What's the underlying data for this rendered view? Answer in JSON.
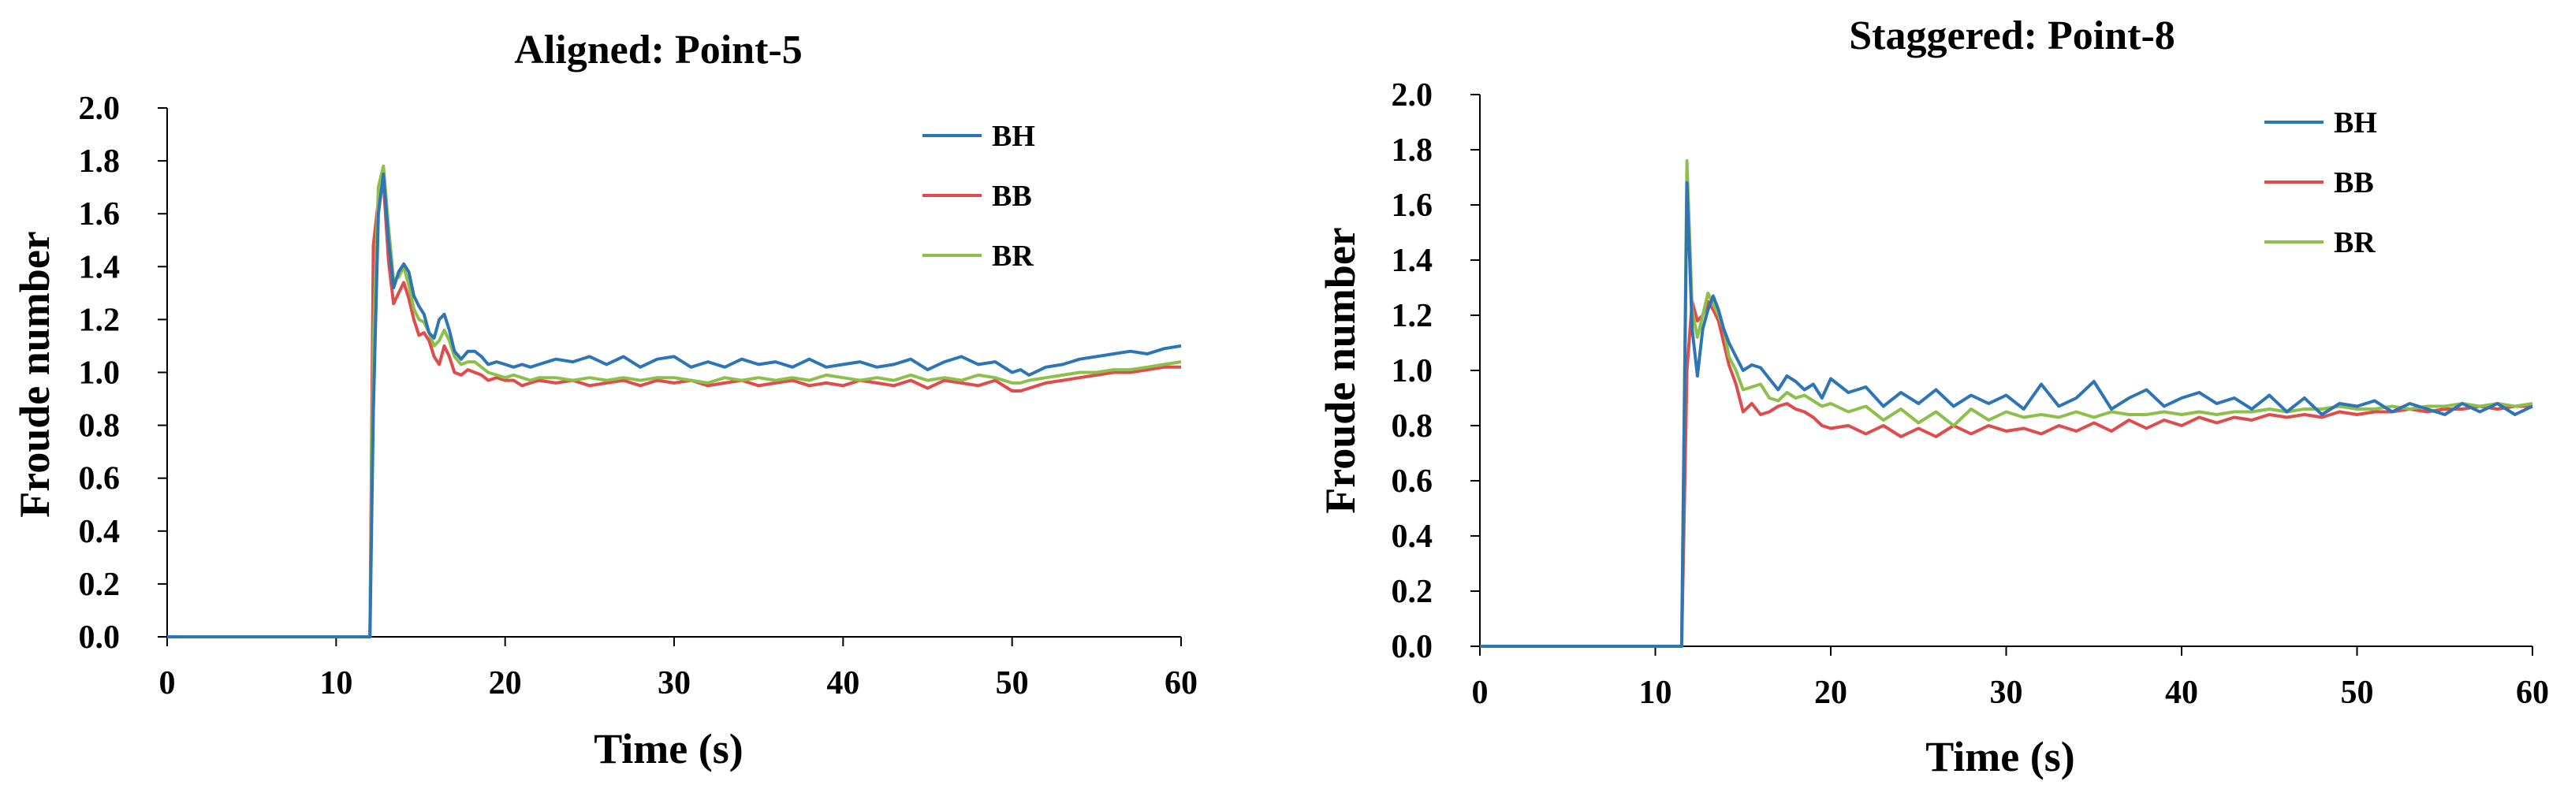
{
  "chart_data": [
    {
      "type": "line",
      "title": "Aligned: Point-5",
      "xlabel": "Time (s)",
      "ylabel": "Froude number",
      "xlim": [
        0,
        60
      ],
      "ylim": [
        0,
        2.0
      ],
      "x_ticks": [
        "0",
        "10",
        "20",
        "30",
        "40",
        "50",
        "60"
      ],
      "y_ticks": [
        "0.0",
        "0.2",
        "0.4",
        "0.6",
        "0.8",
        "1.0",
        "1.2",
        "1.4",
        "1.6",
        "1.8",
        "2.0"
      ],
      "grid": false,
      "legend_position": "top-right",
      "series": [
        {
          "name": "BH",
          "color": "#2e75b6",
          "x": [
            0,
            12,
            12.2,
            12.5,
            12.8,
            13.1,
            13.4,
            13.7,
            14.0,
            14.3,
            14.6,
            14.9,
            15.2,
            15.5,
            15.8,
            16.1,
            16.4,
            16.7,
            17.0,
            17.4,
            17.8,
            18.2,
            18.6,
            19.0,
            19.5,
            20.0,
            20.5,
            21,
            21.5,
            22,
            23,
            24,
            25,
            26,
            27,
            28,
            29,
            30,
            31,
            32,
            33,
            34,
            35,
            36,
            37,
            38,
            39,
            40,
            41,
            42,
            43,
            44,
            45,
            46,
            47,
            48,
            49,
            50,
            50.5,
            51,
            52,
            53,
            54,
            55,
            56,
            57,
            58,
            59,
            60
          ],
          "values": [
            0,
            0,
            0.85,
            1.6,
            1.75,
            1.5,
            1.32,
            1.38,
            1.41,
            1.38,
            1.29,
            1.25,
            1.22,
            1.15,
            1.13,
            1.2,
            1.22,
            1.16,
            1.08,
            1.05,
            1.08,
            1.08,
            1.06,
            1.03,
            1.04,
            1.03,
            1.02,
            1.03,
            1.02,
            1.03,
            1.05,
            1.04,
            1.06,
            1.03,
            1.06,
            1.02,
            1.05,
            1.06,
            1.02,
            1.04,
            1.02,
            1.05,
            1.03,
            1.04,
            1.02,
            1.05,
            1.02,
            1.03,
            1.04,
            1.02,
            1.03,
            1.05,
            1.01,
            1.04,
            1.06,
            1.03,
            1.04,
            1.0,
            1.01,
            0.99,
            1.02,
            1.03,
            1.05,
            1.06,
            1.07,
            1.08,
            1.07,
            1.09,
            1.1
          ]
        },
        {
          "name": "BB",
          "color": "#e04b4b",
          "x": [
            0,
            12,
            12.2,
            12.5,
            12.8,
            13.1,
            13.4,
            13.7,
            14.0,
            14.3,
            14.6,
            14.9,
            15.2,
            15.5,
            15.8,
            16.1,
            16.4,
            16.7,
            17.0,
            17.4,
            17.8,
            18.2,
            18.6,
            19.0,
            19.5,
            20.0,
            20.5,
            21,
            21.5,
            22,
            23,
            24,
            25,
            26,
            27,
            28,
            29,
            30,
            31,
            32,
            33,
            34,
            35,
            36,
            37,
            38,
            39,
            40,
            41,
            42,
            43,
            44,
            45,
            46,
            47,
            48,
            49,
            50,
            50.5,
            51,
            52,
            53,
            54,
            55,
            56,
            57,
            58,
            59,
            60
          ],
          "values": [
            0,
            0,
            1.48,
            1.65,
            1.72,
            1.42,
            1.26,
            1.3,
            1.34,
            1.28,
            1.2,
            1.14,
            1.15,
            1.12,
            1.06,
            1.03,
            1.1,
            1.06,
            1.0,
            0.99,
            1.01,
            1.0,
            0.99,
            0.97,
            0.98,
            0.97,
            0.97,
            0.95,
            0.96,
            0.97,
            0.96,
            0.97,
            0.95,
            0.96,
            0.97,
            0.95,
            0.97,
            0.96,
            0.97,
            0.95,
            0.96,
            0.97,
            0.95,
            0.96,
            0.97,
            0.95,
            0.96,
            0.95,
            0.97,
            0.96,
            0.95,
            0.97,
            0.94,
            0.97,
            0.96,
            0.95,
            0.97,
            0.93,
            0.93,
            0.94,
            0.96,
            0.97,
            0.98,
            0.99,
            1.0,
            1.0,
            1.01,
            1.02,
            1.02
          ]
        },
        {
          "name": "BR",
          "color": "#8cc04a",
          "x": [
            0,
            12,
            12.2,
            12.5,
            12.8,
            13.1,
            13.4,
            13.7,
            14.0,
            14.3,
            14.6,
            14.9,
            15.2,
            15.5,
            15.8,
            16.1,
            16.4,
            16.7,
            17.0,
            17.4,
            17.8,
            18.2,
            18.6,
            19.0,
            19.5,
            20.0,
            20.5,
            21,
            21.5,
            22,
            23,
            24,
            25,
            26,
            27,
            28,
            29,
            30,
            31,
            32,
            33,
            34,
            35,
            36,
            37,
            38,
            39,
            40,
            41,
            42,
            43,
            44,
            45,
            46,
            47,
            48,
            49,
            50,
            50.5,
            51,
            52,
            53,
            54,
            55,
            56,
            57,
            58,
            59,
            60
          ],
          "values": [
            0,
            0,
            1.1,
            1.7,
            1.78,
            1.55,
            1.35,
            1.36,
            1.4,
            1.33,
            1.24,
            1.2,
            1.19,
            1.15,
            1.1,
            1.12,
            1.16,
            1.12,
            1.06,
            1.03,
            1.04,
            1.04,
            1.02,
            1.0,
            0.99,
            0.98,
            0.99,
            0.98,
            0.97,
            0.98,
            0.98,
            0.97,
            0.98,
            0.97,
            0.98,
            0.97,
            0.98,
            0.98,
            0.97,
            0.96,
            0.98,
            0.97,
            0.98,
            0.97,
            0.98,
            0.97,
            0.99,
            0.98,
            0.97,
            0.98,
            0.97,
            0.99,
            0.97,
            0.98,
            0.97,
            0.99,
            0.98,
            0.96,
            0.96,
            0.97,
            0.98,
            0.99,
            1.0,
            1.0,
            1.01,
            1.01,
            1.02,
            1.03,
            1.04
          ]
        }
      ]
    },
    {
      "type": "line",
      "title": "Staggered: Point-8",
      "xlabel": "Time (s)",
      "ylabel": "Froude number",
      "xlim": [
        0,
        60
      ],
      "ylim": [
        0,
        2.0
      ],
      "x_ticks": [
        "0",
        "10",
        "20",
        "30",
        "40",
        "50",
        "60"
      ],
      "y_ticks": [
        "0.0",
        "0.2",
        "0.4",
        "0.6",
        "0.8",
        "1.0",
        "1.2",
        "1.4",
        "1.6",
        "1.8",
        "2.0"
      ],
      "grid": false,
      "legend_position": "top-right",
      "series": [
        {
          "name": "BH",
          "color": "#2e75b6",
          "x": [
            0,
            11.5,
            11.8,
            12.1,
            12.4,
            12.7,
            13.0,
            13.3,
            13.6,
            13.9,
            14.2,
            14.6,
            15.0,
            15.5,
            16.0,
            16.5,
            17.0,
            17.5,
            18.0,
            18.5,
            19,
            19.5,
            20,
            21,
            22,
            23,
            24,
            25,
            26,
            27,
            28,
            29,
            30,
            31,
            32,
            33,
            34,
            35,
            36,
            37,
            38,
            39,
            40,
            41,
            42,
            43,
            44,
            45,
            46,
            47,
            48,
            49,
            50,
            51,
            52,
            53,
            54,
            55,
            56,
            57,
            58,
            59,
            60
          ],
          "values": [
            0,
            0,
            1.68,
            1.15,
            0.98,
            1.15,
            1.22,
            1.27,
            1.22,
            1.15,
            1.1,
            1.05,
            1.0,
            1.02,
            1.01,
            0.97,
            0.93,
            0.98,
            0.96,
            0.93,
            0.95,
            0.9,
            0.97,
            0.92,
            0.94,
            0.87,
            0.92,
            0.88,
            0.93,
            0.87,
            0.91,
            0.88,
            0.91,
            0.86,
            0.95,
            0.87,
            0.9,
            0.96,
            0.86,
            0.9,
            0.93,
            0.87,
            0.9,
            0.92,
            0.88,
            0.9,
            0.86,
            0.91,
            0.85,
            0.9,
            0.84,
            0.88,
            0.87,
            0.89,
            0.85,
            0.88,
            0.86,
            0.84,
            0.88,
            0.85,
            0.88,
            0.84,
            0.87
          ]
        },
        {
          "name": "BB",
          "color": "#e04b4b",
          "x": [
            0,
            11.5,
            11.8,
            12.1,
            12.4,
            12.7,
            13.0,
            13.3,
            13.6,
            13.9,
            14.2,
            14.6,
            15.0,
            15.5,
            16.0,
            16.5,
            17.0,
            17.5,
            18.0,
            18.5,
            19,
            19.5,
            20,
            21,
            22,
            23,
            24,
            25,
            26,
            27,
            28,
            29,
            30,
            31,
            32,
            33,
            34,
            35,
            36,
            37,
            38,
            39,
            40,
            41,
            42,
            43,
            44,
            45,
            46,
            47,
            48,
            49,
            50,
            51,
            52,
            53,
            54,
            55,
            56,
            57,
            58,
            59,
            60
          ],
          "values": [
            0,
            0,
            1.0,
            1.25,
            1.18,
            1.2,
            1.25,
            1.22,
            1.18,
            1.1,
            1.02,
            0.95,
            0.85,
            0.88,
            0.84,
            0.85,
            0.87,
            0.88,
            0.86,
            0.85,
            0.83,
            0.8,
            0.79,
            0.8,
            0.77,
            0.8,
            0.76,
            0.79,
            0.76,
            0.8,
            0.77,
            0.8,
            0.78,
            0.79,
            0.77,
            0.8,
            0.78,
            0.81,
            0.78,
            0.82,
            0.79,
            0.82,
            0.8,
            0.83,
            0.81,
            0.83,
            0.82,
            0.84,
            0.83,
            0.84,
            0.83,
            0.85,
            0.84,
            0.85,
            0.85,
            0.86,
            0.85,
            0.86,
            0.86,
            0.87,
            0.86,
            0.87,
            0.87
          ]
        },
        {
          "name": "BR",
          "color": "#8cc04a",
          "x": [
            0,
            11.5,
            11.8,
            12.1,
            12.4,
            12.7,
            13.0,
            13.3,
            13.6,
            13.9,
            14.2,
            14.6,
            15.0,
            15.5,
            16.0,
            16.5,
            17.0,
            17.5,
            18.0,
            18.5,
            19,
            19.5,
            20,
            21,
            22,
            23,
            24,
            25,
            26,
            27,
            28,
            29,
            30,
            31,
            32,
            33,
            34,
            35,
            36,
            37,
            38,
            39,
            40,
            41,
            42,
            43,
            44,
            45,
            46,
            47,
            48,
            49,
            50,
            51,
            52,
            53,
            54,
            55,
            56,
            57,
            58,
            59,
            60
          ],
          "values": [
            0,
            0,
            1.76,
            1.22,
            1.12,
            1.2,
            1.28,
            1.24,
            1.2,
            1.15,
            1.05,
            1.0,
            0.93,
            0.94,
            0.95,
            0.9,
            0.89,
            0.92,
            0.9,
            0.91,
            0.89,
            0.87,
            0.88,
            0.85,
            0.87,
            0.82,
            0.86,
            0.81,
            0.85,
            0.8,
            0.86,
            0.82,
            0.85,
            0.83,
            0.84,
            0.83,
            0.85,
            0.83,
            0.85,
            0.84,
            0.84,
            0.85,
            0.84,
            0.85,
            0.84,
            0.85,
            0.85,
            0.86,
            0.85,
            0.86,
            0.86,
            0.87,
            0.86,
            0.86,
            0.87,
            0.86,
            0.87,
            0.87,
            0.88,
            0.87,
            0.88,
            0.87,
            0.88
          ]
        }
      ]
    }
  ]
}
